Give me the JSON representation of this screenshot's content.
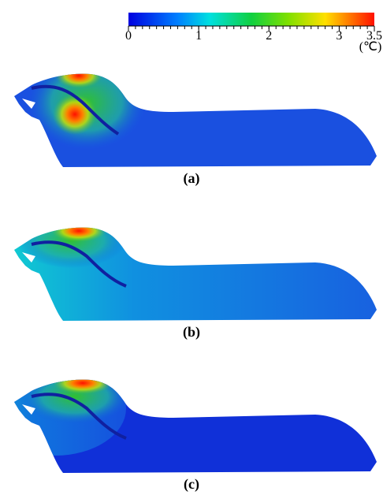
{
  "colorbar": {
    "range": [
      0,
      3.5
    ],
    "ticks": [
      0,
      1,
      2,
      3,
      3.5
    ],
    "unit": "(℃)"
  },
  "panels": [
    {
      "label": "(a)"
    },
    {
      "label": "(b)"
    },
    {
      "label": "(c)"
    }
  ]
}
